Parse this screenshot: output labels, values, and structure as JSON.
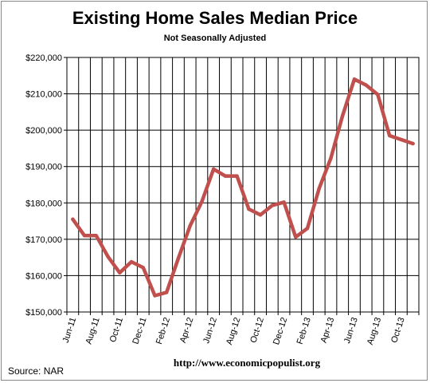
{
  "chart_data": {
    "type": "line",
    "title": "Existing Home Sales Median Price",
    "subtitle": "Not Seasonally Adjusted",
    "source": "Source:  NAR",
    "website": "http://www.economicpopulist.org",
    "ylim": [
      150000,
      220000
    ],
    "yticks": [
      150000,
      160000,
      170000,
      180000,
      190000,
      200000,
      210000,
      220000
    ],
    "ytick_labels": [
      "$150,000",
      "$160,000",
      "$170,000",
      "$180,000",
      "$190,000",
      "$200,000",
      "$210,000",
      "$220,000"
    ],
    "x": [
      "Jun-11",
      "Jul-11",
      "Aug-11",
      "Sep-11",
      "Oct-11",
      "Nov-11",
      "Dec-11",
      "Jan-12",
      "Feb-12",
      "Mar-12",
      "Apr-12",
      "May-12",
      "Jun-12",
      "Jul-12",
      "Aug-12",
      "Sep-12",
      "Oct-12",
      "Nov-12",
      "Dec-12",
      "Jan-13",
      "Feb-13",
      "Mar-13",
      "Apr-13",
      "May-13",
      "Jun-13",
      "Jul-13",
      "Aug-13",
      "Sep-13",
      "Oct-13",
      "Nov-13"
    ],
    "xtick_labels": [
      "Jun-11",
      "Aug-11",
      "Oct-11",
      "Dec-11",
      "Feb-12",
      "Apr-12",
      "Jun-12",
      "Aug-12",
      "Oct-12",
      "Dec-12",
      "Feb-13",
      "Apr-13",
      "Jun-13",
      "Aug-13",
      "Oct-13"
    ],
    "series": [
      {
        "values": [
          175500,
          171000,
          171000,
          165200,
          160800,
          163800,
          162200,
          154500,
          155400,
          164800,
          173700,
          180300,
          189300,
          187400,
          187400,
          178300,
          176700,
          179300,
          180200,
          170600,
          173000,
          184000,
          192300,
          204000,
          214000,
          212400,
          209800,
          198500,
          197400,
          196300
        ],
        "color": "#c0504d"
      }
    ],
    "grid": "vertical-and-horizontal"
  }
}
